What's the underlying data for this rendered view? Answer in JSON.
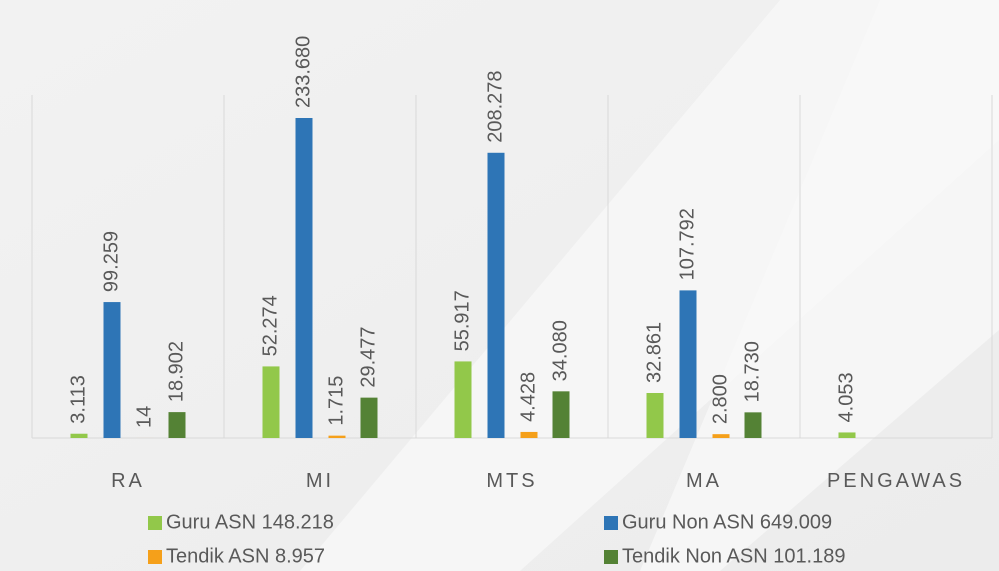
{
  "chart_data": {
    "type": "bar",
    "categories": [
      "RA",
      "MI",
      "MTS",
      "MA",
      "PENGAWAS"
    ],
    "series": [
      {
        "name": "Guru ASN 148.218",
        "color": "#92c84a",
        "values": [
          3113,
          52274,
          55917,
          32861,
          4053
        ],
        "value_labels": [
          "3.113",
          "52.274",
          "55.917",
          "32.861",
          "4.053"
        ]
      },
      {
        "name": "Guru Non ASN 649.009",
        "color": "#2e75b6",
        "values": [
          99259,
          233680,
          208278,
          107792,
          null
        ],
        "value_labels": [
          "99.259",
          "233.680",
          "208.278",
          "107.792",
          null
        ]
      },
      {
        "name": "Tendik ASN 8.957",
        "color": "#f5a01a",
        "values": [
          14,
          1715,
          4428,
          2800,
          null
        ],
        "value_labels": [
          "14",
          "1.715",
          "4.428",
          "2.800",
          null
        ]
      },
      {
        "name": "Tendik Non ASN 101.189",
        "color": "#548235",
        "values": [
          18902,
          29477,
          34080,
          18730,
          null
        ],
        "value_labels": [
          "18.902",
          "29.477",
          "34.080",
          "18.730",
          null
        ]
      }
    ]
  }
}
